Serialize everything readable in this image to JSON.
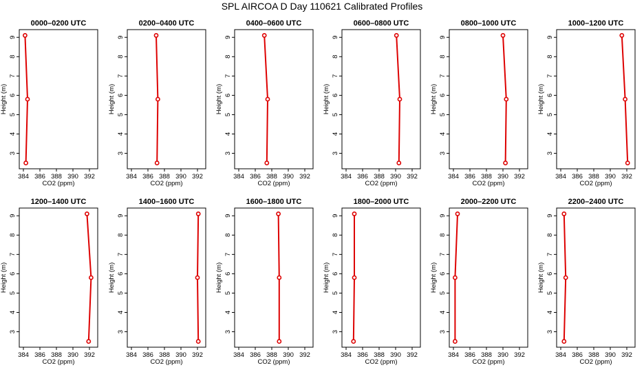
{
  "figure": {
    "title": "SPL AIRCOA D  Day 110621  Calibrated Profiles"
  },
  "chart_data": [
    {
      "type": "line",
      "title": "0000–0200 UTC",
      "xlabel": "CO2 (ppm)",
      "ylabel": "Height (m)",
      "xlim": [
        383.5,
        393
      ],
      "ylim": [
        2.2,
        9.4
      ],
      "xticks": [
        384,
        386,
        388,
        390,
        392
      ],
      "yticks": [
        3,
        4,
        5,
        6,
        7,
        8,
        9
      ],
      "x": [
        384.3,
        384.5,
        384.2
      ],
      "y": [
        2.5,
        5.8,
        9.1
      ],
      "color": "#dd0000"
    },
    {
      "type": "line",
      "title": "0200–0400 UTC",
      "xlabel": "CO2 (ppm)",
      "ylabel": "Height (m)",
      "xlim": [
        383.5,
        393
      ],
      "ylim": [
        2.2,
        9.4
      ],
      "xticks": [
        384,
        386,
        388,
        390,
        392
      ],
      "yticks": [
        3,
        4,
        5,
        6,
        7,
        8,
        9
      ],
      "x": [
        387.1,
        387.2,
        387.0
      ],
      "y": [
        2.5,
        5.8,
        9.1
      ],
      "color": "#dd0000"
    },
    {
      "type": "line",
      "title": "0400–0600 UTC",
      "xlabel": "CO2 (ppm)",
      "ylabel": "Height (m)",
      "xlim": [
        383.5,
        393
      ],
      "ylim": [
        2.2,
        9.4
      ],
      "xticks": [
        384,
        386,
        388,
        390,
        392
      ],
      "yticks": [
        3,
        4,
        5,
        6,
        7,
        8,
        9
      ],
      "x": [
        387.4,
        387.5,
        387.1
      ],
      "y": [
        2.5,
        5.8,
        9.1
      ],
      "color": "#dd0000"
    },
    {
      "type": "line",
      "title": "0600–0800 UTC",
      "xlabel": "CO2 (ppm)",
      "ylabel": "Height (m)",
      "xlim": [
        383.5,
        393
      ],
      "ylim": [
        2.2,
        9.4
      ],
      "xticks": [
        384,
        386,
        388,
        390,
        392
      ],
      "yticks": [
        3,
        4,
        5,
        6,
        7,
        8,
        9
      ],
      "x": [
        390.4,
        390.5,
        390.1
      ],
      "y": [
        2.5,
        5.8,
        9.1
      ],
      "color": "#dd0000"
    },
    {
      "type": "line",
      "title": "0800–1000 UTC",
      "xlabel": "CO2 (ppm)",
      "ylabel": "Height (m)",
      "xlim": [
        383.5,
        393
      ],
      "ylim": [
        2.2,
        9.4
      ],
      "xticks": [
        384,
        386,
        388,
        390,
        392
      ],
      "yticks": [
        3,
        4,
        5,
        6,
        7,
        8,
        9
      ],
      "x": [
        390.3,
        390.4,
        390.0
      ],
      "y": [
        2.5,
        5.8,
        9.1
      ],
      "color": "#dd0000"
    },
    {
      "type": "line",
      "title": "1000–1200 UTC",
      "xlabel": "CO2 (ppm)",
      "ylabel": "Height (m)",
      "xlim": [
        383.5,
        393
      ],
      "ylim": [
        2.2,
        9.4
      ],
      "xticks": [
        384,
        386,
        388,
        390,
        392
      ],
      "yticks": [
        3,
        4,
        5,
        6,
        7,
        8,
        9
      ],
      "x": [
        392.1,
        391.8,
        391.4
      ],
      "y": [
        2.5,
        5.8,
        9.1
      ],
      "color": "#dd0000"
    },
    {
      "type": "line",
      "title": "1200–1400 UTC",
      "xlabel": "CO2 (ppm)",
      "ylabel": "Height (m)",
      "xlim": [
        383.5,
        393
      ],
      "ylim": [
        2.2,
        9.4
      ],
      "xticks": [
        384,
        386,
        388,
        390,
        392
      ],
      "yticks": [
        3,
        4,
        5,
        6,
        7,
        8,
        9
      ],
      "x": [
        391.9,
        392.2,
        391.7
      ],
      "y": [
        2.5,
        5.8,
        9.1
      ],
      "color": "#dd0000"
    },
    {
      "type": "line",
      "title": "1400–1600 UTC",
      "xlabel": "CO2 (ppm)",
      "ylabel": "Height (m)",
      "xlim": [
        383.5,
        393
      ],
      "ylim": [
        2.2,
        9.4
      ],
      "xticks": [
        384,
        386,
        388,
        390,
        392
      ],
      "yticks": [
        3,
        4,
        5,
        6,
        7,
        8,
        9
      ],
      "x": [
        392.1,
        392.0,
        392.1
      ],
      "y": [
        2.5,
        5.8,
        9.1
      ],
      "color": "#dd0000"
    },
    {
      "type": "line",
      "title": "1600–1800 UTC",
      "xlabel": "CO2 (ppm)",
      "ylabel": "Height (m)",
      "xlim": [
        383.5,
        393
      ],
      "ylim": [
        2.2,
        9.4
      ],
      "xticks": [
        384,
        386,
        388,
        390,
        392
      ],
      "yticks": [
        3,
        4,
        5,
        6,
        7,
        8,
        9
      ],
      "x": [
        388.9,
        388.9,
        388.8
      ],
      "y": [
        2.5,
        5.8,
        9.1
      ],
      "color": "#dd0000"
    },
    {
      "type": "line",
      "title": "1800–2000 UTC",
      "xlabel": "CO2 (ppm)",
      "ylabel": "Height (m)",
      "xlim": [
        383.5,
        393
      ],
      "ylim": [
        2.2,
        9.4
      ],
      "xticks": [
        384,
        386,
        388,
        390,
        392
      ],
      "yticks": [
        3,
        4,
        5,
        6,
        7,
        8,
        9
      ],
      "x": [
        384.9,
        385.0,
        385.0
      ],
      "y": [
        2.5,
        5.8,
        9.1
      ],
      "color": "#dd0000"
    },
    {
      "type": "line",
      "title": "2000–2200 UTC",
      "xlabel": "CO2 (ppm)",
      "ylabel": "Height (m)",
      "xlim": [
        383.5,
        393
      ],
      "ylim": [
        2.2,
        9.4
      ],
      "xticks": [
        384,
        386,
        388,
        390,
        392
      ],
      "yticks": [
        3,
        4,
        5,
        6,
        7,
        8,
        9
      ],
      "x": [
        384.2,
        384.2,
        384.5
      ],
      "y": [
        2.5,
        5.8,
        9.1
      ],
      "color": "#dd0000"
    },
    {
      "type": "line",
      "title": "2200–2400 UTC",
      "xlabel": "CO2 (ppm)",
      "ylabel": "Height (m)",
      "xlim": [
        383.5,
        393
      ],
      "ylim": [
        2.2,
        9.4
      ],
      "xticks": [
        384,
        386,
        388,
        390,
        392
      ],
      "yticks": [
        3,
        4,
        5,
        6,
        7,
        8,
        9
      ],
      "x": [
        384.4,
        384.6,
        384.4
      ],
      "y": [
        2.5,
        5.8,
        9.1
      ],
      "color": "#dd0000"
    }
  ]
}
